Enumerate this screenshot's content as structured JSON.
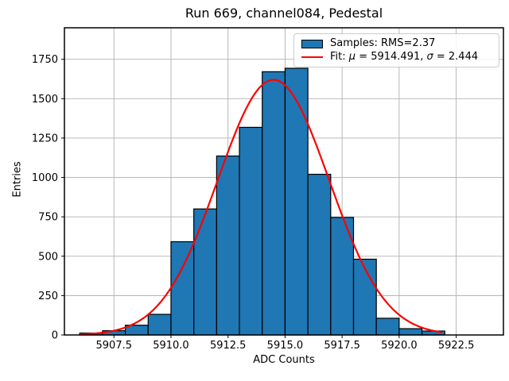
{
  "title": "Run 669, channel084, Pedestal",
  "axes": {
    "xlabel": "ADC Counts",
    "ylabel": "Entries"
  },
  "legend": {
    "samples_label": "Samples: RMS=2.37",
    "fit_label_parts": {
      "p1": "Fit: ",
      "mu": "μ",
      "p2": " = 5914.491, ",
      "sigma": "σ",
      "p3": " = 2.444"
    }
  },
  "chart_data": {
    "type": "bar",
    "subtype": "histogram_with_gaussian_fit",
    "title": "Run 669, channel084, Pedestal",
    "xlabel": "ADC Counts",
    "ylabel": "Entries",
    "bin_edges": [
      5906,
      5907,
      5908,
      5909,
      5910,
      5911,
      5912,
      5913,
      5914,
      5915,
      5916,
      5917,
      5918,
      5919,
      5920,
      5921,
      5922
    ],
    "counts": [
      12,
      27,
      62,
      131,
      592,
      800,
      1136,
      1318,
      1671,
      1693,
      1020,
      746,
      481,
      106,
      40,
      25
    ],
    "rms": 2.37,
    "fit": {
      "mu": 5914.491,
      "sigma": 2.444,
      "amplitude": 1620,
      "x_start": 5906.0,
      "x_end": 5921.85
    },
    "xlim": [
      5905.33,
      5924.57
    ],
    "ylim": [
      0,
      1950
    ],
    "x_ticks": [
      5907.5,
      5910.0,
      5912.5,
      5915.0,
      5917.5,
      5920.0,
      5922.5
    ],
    "x_tick_labels": [
      "5907.5",
      "5910.0",
      "5912.5",
      "5915.0",
      "5917.5",
      "5920.0",
      "5922.5"
    ],
    "y_ticks": [
      0,
      250,
      500,
      750,
      1000,
      1250,
      1500,
      1750
    ],
    "y_tick_labels": [
      "0",
      "250",
      "500",
      "750",
      "1000",
      "1250",
      "1500",
      "1750"
    ],
    "grid": true,
    "legend_position": "upper right",
    "colors": {
      "bar_fill": "#1f77b4",
      "bar_edge": "#000000",
      "fit_line": "#ff0000",
      "grid": "#b0b0b0",
      "spine": "#000000",
      "text": "#000000",
      "legend_border": "#cccccc"
    }
  }
}
